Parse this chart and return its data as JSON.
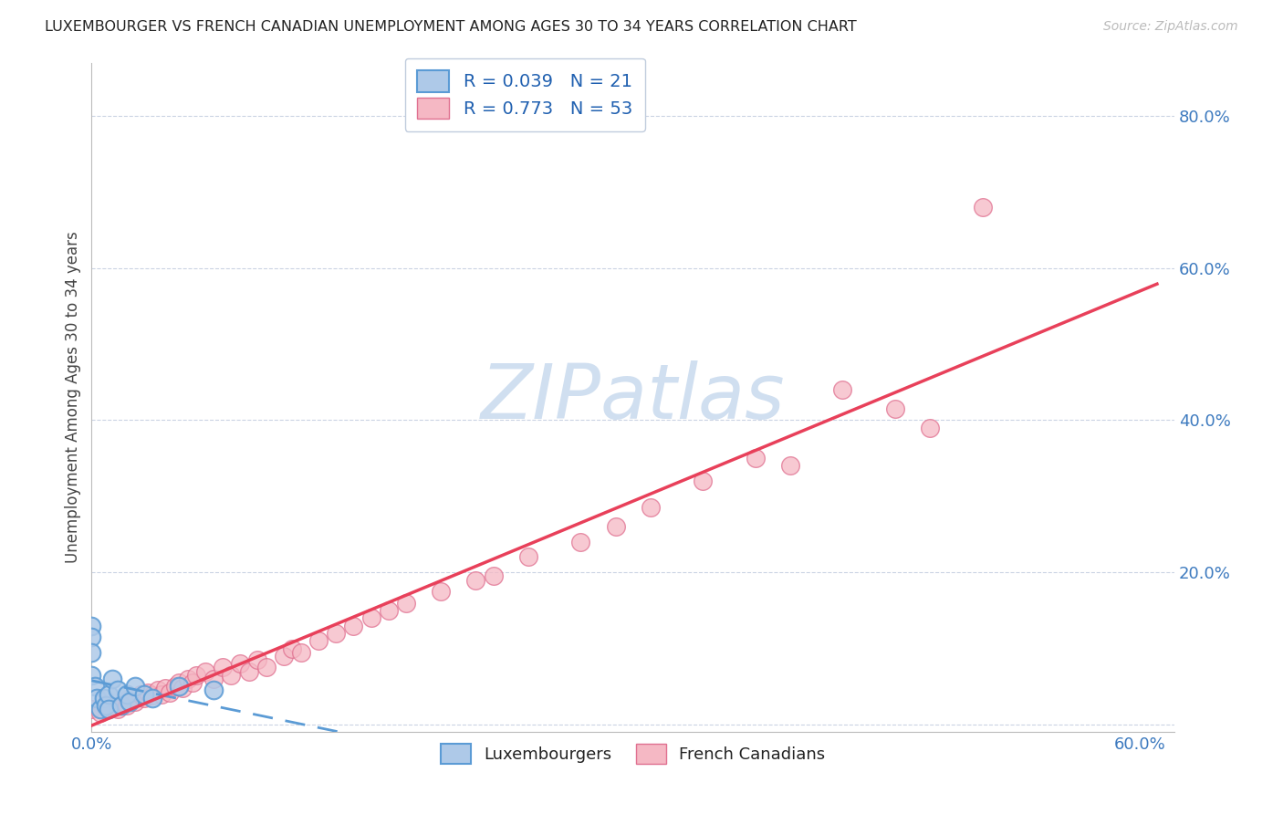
{
  "title": "LUXEMBOURGER VS FRENCH CANADIAN UNEMPLOYMENT AMONG AGES 30 TO 34 YEARS CORRELATION CHART",
  "source": "Source: ZipAtlas.com",
  "ylabel": "Unemployment Among Ages 30 to 34 years",
  "xlim": [
    0.0,
    0.62
  ],
  "ylim": [
    -0.01,
    0.87
  ],
  "lux_R": 0.039,
  "lux_N": 21,
  "fc_R": 0.773,
  "fc_N": 53,
  "lux_face_color": "#aec9e8",
  "lux_edge_color": "#5b9bd5",
  "fc_face_color": "#f5b8c4",
  "fc_edge_color": "#e07090",
  "lux_line_color": "#5b9bd5",
  "fc_line_color": "#e8405a",
  "watermark_color": "#d0dff0",
  "lux_x": [
    0.0,
    0.0,
    0.0,
    0.0,
    0.002,
    0.003,
    0.005,
    0.007,
    0.008,
    0.01,
    0.01,
    0.012,
    0.015,
    0.017,
    0.02,
    0.022,
    0.025,
    0.03,
    0.035,
    0.05,
    0.07
  ],
  "lux_y": [
    0.13,
    0.115,
    0.095,
    0.065,
    0.05,
    0.035,
    0.02,
    0.035,
    0.025,
    0.04,
    0.02,
    0.06,
    0.045,
    0.025,
    0.04,
    0.03,
    0.05,
    0.04,
    0.035,
    0.05,
    0.045
  ],
  "fc_x": [
    0.0,
    0.005,
    0.01,
    0.015,
    0.018,
    0.02,
    0.022,
    0.025,
    0.028,
    0.03,
    0.032,
    0.035,
    0.038,
    0.04,
    0.042,
    0.045,
    0.048,
    0.05,
    0.052,
    0.055,
    0.058,
    0.06,
    0.065,
    0.07,
    0.075,
    0.08,
    0.085,
    0.09,
    0.095,
    0.1,
    0.11,
    0.115,
    0.12,
    0.13,
    0.14,
    0.15,
    0.16,
    0.17,
    0.18,
    0.2,
    0.22,
    0.23,
    0.25,
    0.28,
    0.3,
    0.32,
    0.35,
    0.38,
    0.4,
    0.43,
    0.46,
    0.48,
    0.51
  ],
  "fc_y": [
    0.02,
    0.015,
    0.025,
    0.02,
    0.03,
    0.025,
    0.035,
    0.03,
    0.04,
    0.035,
    0.042,
    0.038,
    0.045,
    0.04,
    0.048,
    0.042,
    0.05,
    0.055,
    0.048,
    0.06,
    0.055,
    0.065,
    0.07,
    0.06,
    0.075,
    0.065,
    0.08,
    0.07,
    0.085,
    0.075,
    0.09,
    0.1,
    0.095,
    0.11,
    0.12,
    0.13,
    0.14,
    0.15,
    0.16,
    0.175,
    0.19,
    0.195,
    0.22,
    0.24,
    0.26,
    0.285,
    0.32,
    0.35,
    0.34,
    0.44,
    0.415,
    0.39,
    0.68
  ]
}
